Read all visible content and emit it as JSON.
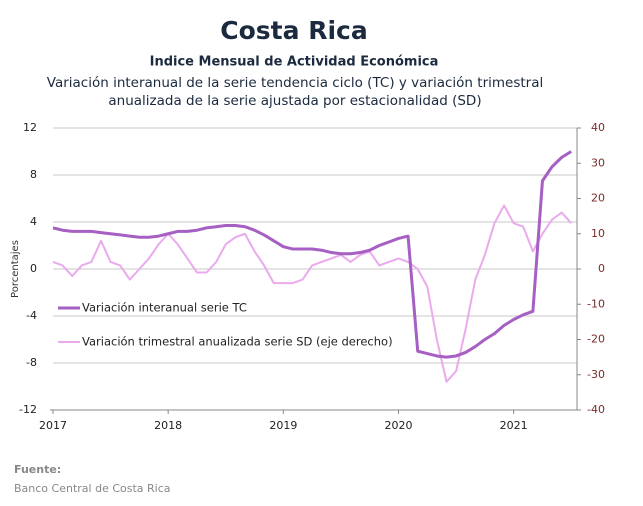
{
  "chart_data": {
    "type": "line",
    "title": "Costa Rica",
    "subtitle": "Indice Mensual de  Actividad Económica",
    "description": "Variación interanual de la serie tendencia ciclo (TC) y variación trimestral anualizada de la serie ajustada por estacionalidad (SD)",
    "ylabel": "Porcentajes",
    "source_label": "Fuente:",
    "source": "Banco Central de Costa Rica",
    "xlim": [
      2017,
      2021.55
    ],
    "xticks": [
      2017,
      2018,
      2019,
      2020,
      2021
    ],
    "ylim": [
      -12,
      12
    ],
    "yticks": [
      -12,
      -8,
      -4,
      0,
      4,
      8,
      12
    ],
    "y2lim": [
      -40,
      40
    ],
    "y2ticks": [
      -40,
      -30,
      -20,
      -10,
      0,
      10,
      20,
      30,
      40
    ],
    "grid": true,
    "legend": "left",
    "x": [
      2017,
      2017.083,
      2017.167,
      2017.25,
      2017.333,
      2017.417,
      2017.5,
      2017.583,
      2017.667,
      2017.75,
      2017.833,
      2017.917,
      2018,
      2018.083,
      2018.167,
      2018.25,
      2018.333,
      2018.417,
      2018.5,
      2018.583,
      2018.667,
      2018.75,
      2018.833,
      2018.917,
      2019,
      2019.083,
      2019.167,
      2019.25,
      2019.333,
      2019.417,
      2019.5,
      2019.583,
      2019.667,
      2019.75,
      2019.833,
      2019.917,
      2020,
      2020.083,
      2020.167,
      2020.25,
      2020.333,
      2020.417,
      2020.5,
      2020.583,
      2020.667,
      2020.75,
      2020.833,
      2020.917,
      2021,
      2021.083,
      2021.167,
      2021.25,
      2021.333,
      2021.417,
      2021.5
    ],
    "series": [
      {
        "name": "Variación interanual serie TC",
        "color": "#a65fc2",
        "axis": "y",
        "values": [
          3.5,
          3.3,
          3.2,
          3.2,
          3.2,
          3.1,
          3.0,
          2.9,
          2.8,
          2.7,
          2.7,
          2.8,
          3.0,
          3.2,
          3.2,
          3.3,
          3.5,
          3.6,
          3.7,
          3.7,
          3.6,
          3.3,
          2.9,
          2.4,
          1.9,
          1.7,
          1.7,
          1.7,
          1.6,
          1.4,
          1.3,
          1.3,
          1.4,
          1.6,
          2.0,
          2.3,
          2.6,
          2.8,
          -7.0,
          -7.2,
          -7.4,
          -7.5,
          -7.4,
          -7.1,
          -6.6,
          -6.0,
          -5.5,
          -4.8,
          -4.3,
          -3.9,
          -3.6,
          7.5,
          8.7,
          9.5,
          10.0
        ]
      },
      {
        "name": "Variación trimestral anualizada serie SD (eje derecho)",
        "color": "#eaaaec",
        "axis": "y2",
        "values": [
          2,
          1,
          -2,
          1,
          2,
          8,
          2,
          1,
          -3,
          0,
          3,
          7,
          10,
          7,
          3,
          -1,
          -1,
          2,
          7,
          9,
          10,
          5,
          1,
          -4,
          -4,
          -4,
          -3,
          1,
          2,
          3,
          4,
          2,
          4,
          5,
          1,
          2,
          3,
          2,
          0,
          -5,
          -20,
          -32,
          -29,
          -17,
          -3,
          4,
          13,
          18,
          13,
          12,
          5,
          10,
          14,
          16,
          13
        ]
      }
    ]
  }
}
